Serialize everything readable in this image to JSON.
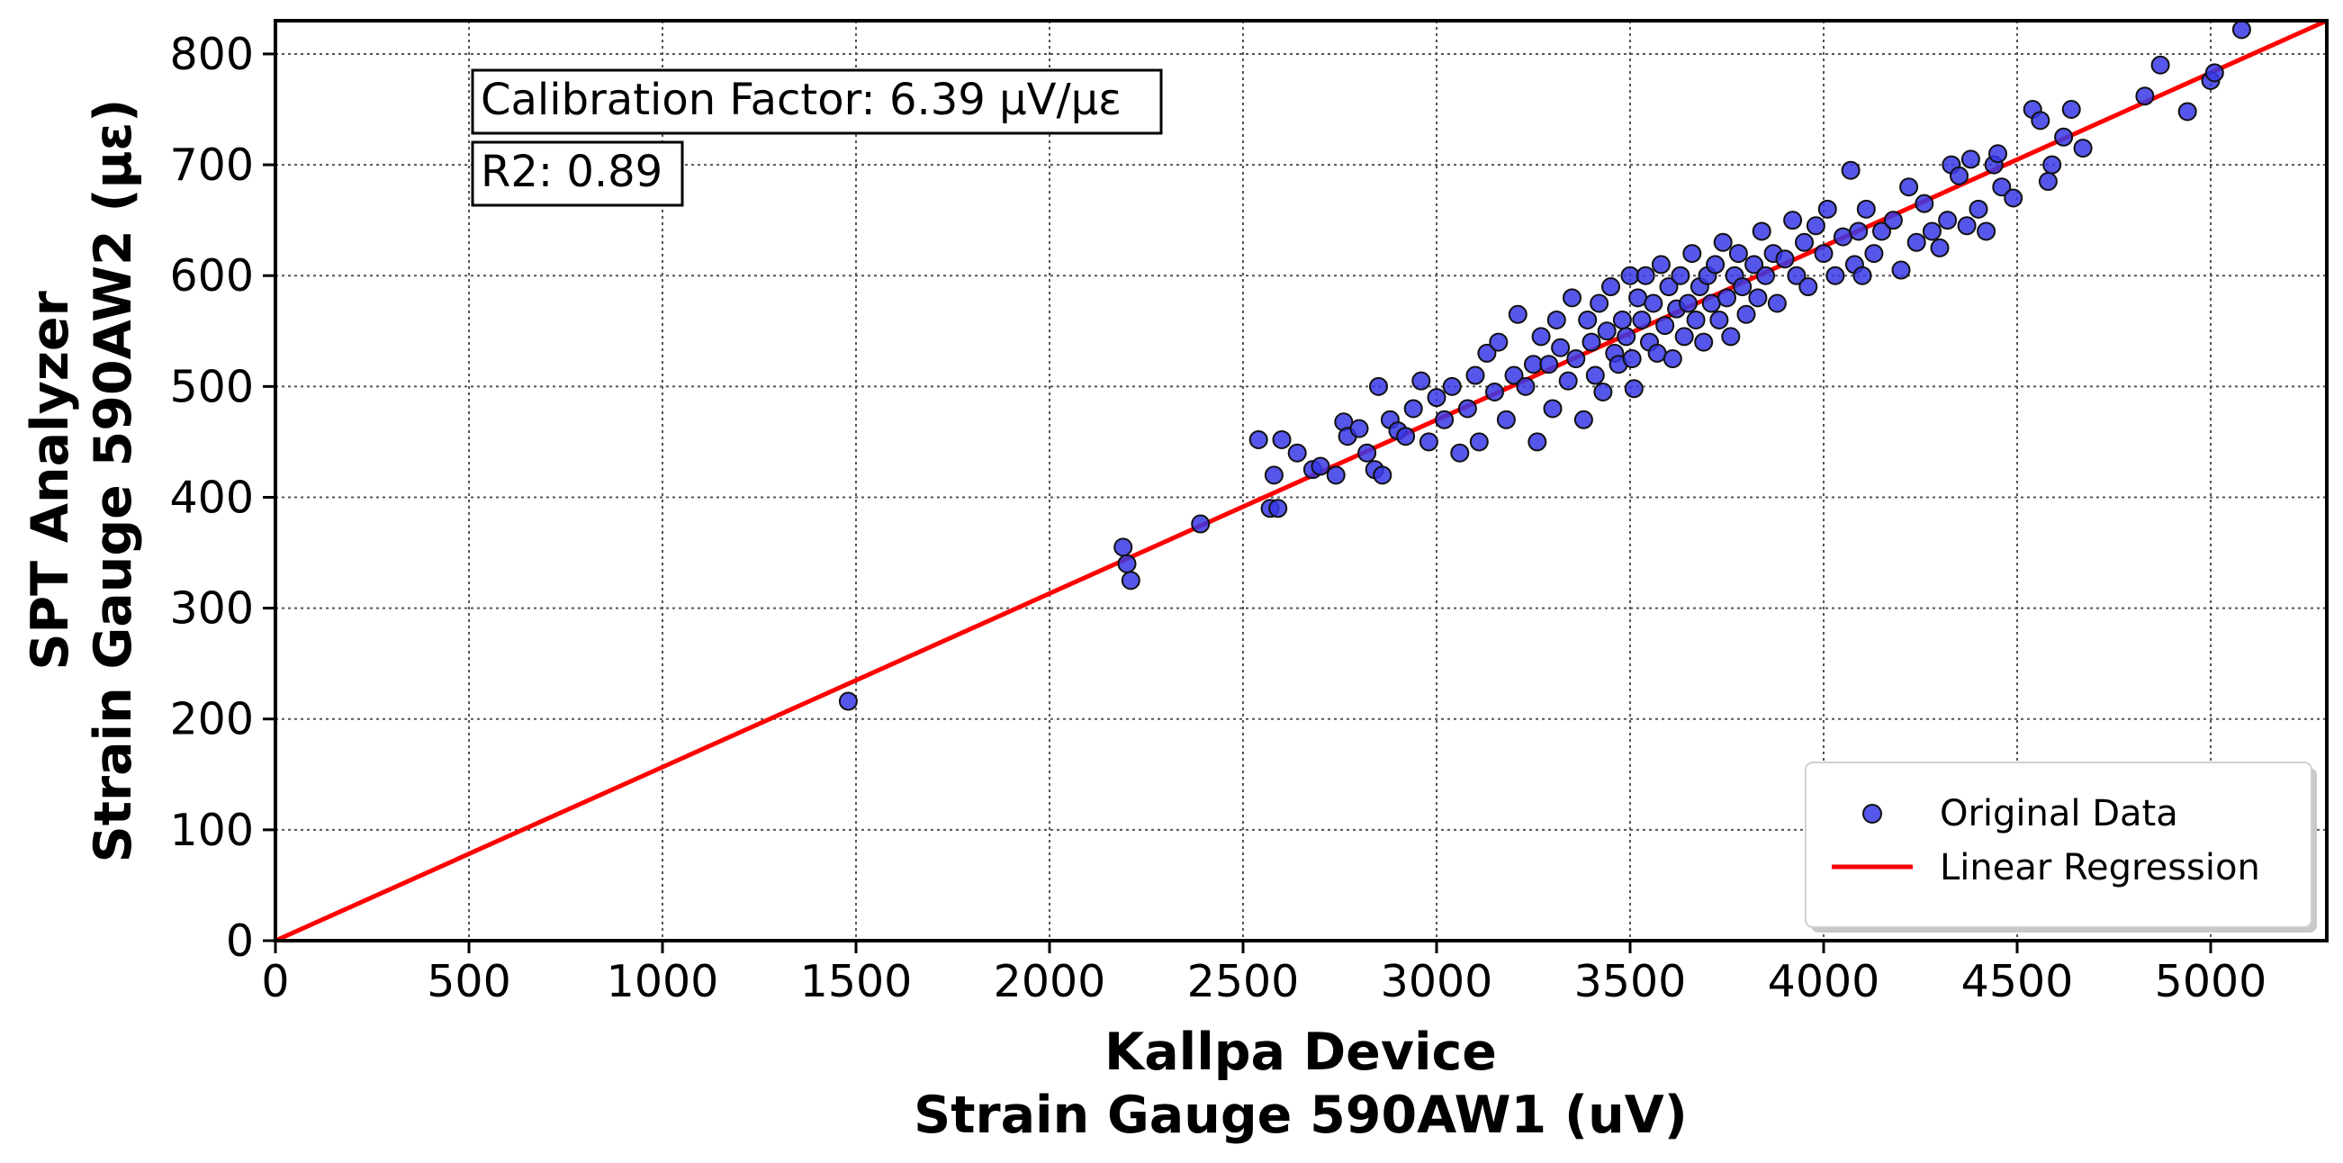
{
  "chart_data": {
    "type": "scatter",
    "title": "",
    "xlabel": [
      "Kallpa Device",
      "Strain Gauge 590AW1 (uV)"
    ],
    "ylabel": [
      "SPT Analyzer",
      "Strain Gauge 590AW2 (με)"
    ],
    "xlim": [
      0,
      5300
    ],
    "ylim": [
      0,
      830
    ],
    "xticks": [
      0,
      500,
      1000,
      1500,
      2000,
      2500,
      3000,
      3500,
      4000,
      4500,
      5000
    ],
    "yticks": [
      0,
      100,
      200,
      300,
      400,
      500,
      600,
      700,
      800
    ],
    "grid": true,
    "annotations": [
      "Calibration Factor: 6.39 μV/με",
      "R2: 0.89"
    ],
    "legend": {
      "placement": "lower-right",
      "entries": [
        "Original Data",
        "Linear Regression"
      ]
    },
    "colors": {
      "points": "#3838e6",
      "line": "#ff0000"
    },
    "regression": {
      "slope": 0.1565,
      "intercept": 0,
      "x_range": [
        0,
        5300
      ]
    },
    "series": [
      {
        "name": "Original Data",
        "type": "scatter",
        "points": [
          [
            1480,
            216
          ],
          [
            2190,
            355
          ],
          [
            2200,
            340
          ],
          [
            2210,
            325
          ],
          [
            2390,
            376
          ],
          [
            2540,
            452
          ],
          [
            2570,
            390
          ],
          [
            2580,
            420
          ],
          [
            2600,
            452
          ],
          [
            2590,
            390
          ],
          [
            2640,
            440
          ],
          [
            2680,
            425
          ],
          [
            2700,
            428
          ],
          [
            2740,
            420
          ],
          [
            2760,
            468
          ],
          [
            2770,
            455
          ],
          [
            2800,
            462
          ],
          [
            2820,
            440
          ],
          [
            2840,
            425
          ],
          [
            2850,
            500
          ],
          [
            2860,
            420
          ],
          [
            2880,
            470
          ],
          [
            2900,
            460
          ],
          [
            2920,
            455
          ],
          [
            2940,
            480
          ],
          [
            2960,
            505
          ],
          [
            2980,
            450
          ],
          [
            3000,
            490
          ],
          [
            3020,
            470
          ],
          [
            3040,
            500
          ],
          [
            3060,
            440
          ],
          [
            3080,
            480
          ],
          [
            3100,
            510
          ],
          [
            3110,
            450
          ],
          [
            3130,
            530
          ],
          [
            3150,
            495
          ],
          [
            3160,
            540
          ],
          [
            3180,
            470
          ],
          [
            3200,
            510
          ],
          [
            3210,
            565
          ],
          [
            3230,
            500
          ],
          [
            3250,
            520
          ],
          [
            3260,
            450
          ],
          [
            3270,
            545
          ],
          [
            3290,
            520
          ],
          [
            3300,
            480
          ],
          [
            3310,
            560
          ],
          [
            3320,
            535
          ],
          [
            3340,
            505
          ],
          [
            3350,
            580
          ],
          [
            3360,
            525
          ],
          [
            3380,
            470
          ],
          [
            3390,
            560
          ],
          [
            3400,
            540
          ],
          [
            3410,
            510
          ],
          [
            3420,
            575
          ],
          [
            3430,
            495
          ],
          [
            3440,
            550
          ],
          [
            3450,
            590
          ],
          [
            3460,
            530
          ],
          [
            3470,
            520
          ],
          [
            3480,
            560
          ],
          [
            3490,
            545
          ],
          [
            3500,
            600
          ],
          [
            3505,
            525
          ],
          [
            3510,
            498
          ],
          [
            3520,
            580
          ],
          [
            3530,
            560
          ],
          [
            3540,
            600
          ],
          [
            3550,
            540
          ],
          [
            3560,
            575
          ],
          [
            3570,
            530
          ],
          [
            3580,
            610
          ],
          [
            3590,
            555
          ],
          [
            3600,
            590
          ],
          [
            3610,
            525
          ],
          [
            3620,
            570
          ],
          [
            3630,
            600
          ],
          [
            3640,
            545
          ],
          [
            3650,
            575
          ],
          [
            3660,
            620
          ],
          [
            3670,
            560
          ],
          [
            3680,
            590
          ],
          [
            3690,
            540
          ],
          [
            3700,
            600
          ],
          [
            3710,
            575
          ],
          [
            3720,
            610
          ],
          [
            3730,
            560
          ],
          [
            3740,
            630
          ],
          [
            3750,
            580
          ],
          [
            3760,
            545
          ],
          [
            3770,
            600
          ],
          [
            3780,
            620
          ],
          [
            3790,
            590
          ],
          [
            3800,
            565
          ],
          [
            3820,
            610
          ],
          [
            3830,
            580
          ],
          [
            3840,
            640
          ],
          [
            3850,
            600
          ],
          [
            3870,
            620
          ],
          [
            3880,
            575
          ],
          [
            3900,
            615
          ],
          [
            3920,
            650
          ],
          [
            3930,
            600
          ],
          [
            3950,
            630
          ],
          [
            3960,
            590
          ],
          [
            3980,
            645
          ],
          [
            4000,
            620
          ],
          [
            4010,
            660
          ],
          [
            4030,
            600
          ],
          [
            4050,
            635
          ],
          [
            4070,
            695
          ],
          [
            4080,
            610
          ],
          [
            4090,
            640
          ],
          [
            4100,
            600
          ],
          [
            4110,
            660
          ],
          [
            4130,
            620
          ],
          [
            4150,
            640
          ],
          [
            4180,
            650
          ],
          [
            4200,
            605
          ],
          [
            4220,
            680
          ],
          [
            4240,
            630
          ],
          [
            4260,
            665
          ],
          [
            4280,
            640
          ],
          [
            4300,
            625
          ],
          [
            4320,
            650
          ],
          [
            4330,
            700
          ],
          [
            4350,
            690
          ],
          [
            4370,
            645
          ],
          [
            4380,
            705
          ],
          [
            4400,
            660
          ],
          [
            4420,
            640
          ],
          [
            4440,
            700
          ],
          [
            4450,
            710
          ],
          [
            4460,
            680
          ],
          [
            4490,
            670
          ],
          [
            4540,
            750
          ],
          [
            4560,
            740
          ],
          [
            4580,
            685
          ],
          [
            4590,
            700
          ],
          [
            4620,
            725
          ],
          [
            4640,
            750
          ],
          [
            4670,
            715
          ],
          [
            4830,
            762
          ],
          [
            4870,
            790
          ],
          [
            4940,
            748
          ],
          [
            5000,
            776
          ],
          [
            5010,
            783
          ],
          [
            5080,
            822
          ]
        ]
      },
      {
        "name": "Linear Regression",
        "type": "line",
        "points": [
          [
            0,
            0
          ],
          [
            5300,
            830
          ]
        ]
      }
    ]
  }
}
